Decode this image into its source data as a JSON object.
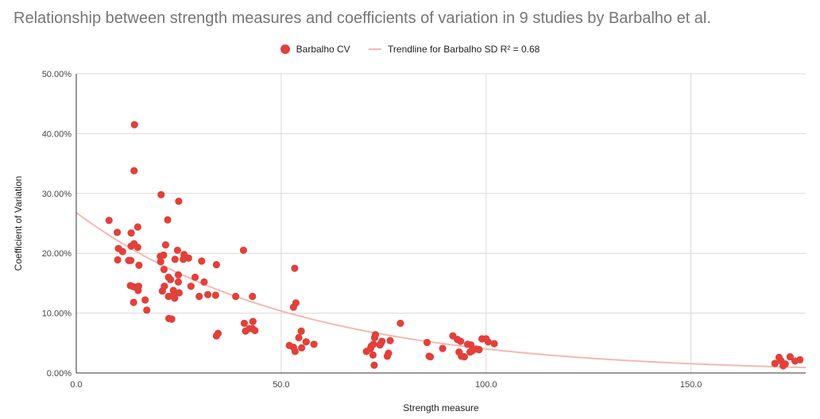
{
  "chart_data": {
    "type": "scatter",
    "title": "Relationship between strength measures and coefficients of variation in 9 studies by Barbalho et al.",
    "xlabel": "Strength measure",
    "ylabel": "Coefficient of Variation",
    "xlim": [
      0,
      178
    ],
    "ylim": [
      0,
      0.5
    ],
    "x_ticks": [
      {
        "value": 0,
        "label": "0.0"
      },
      {
        "value": 50,
        "label": "50.0"
      },
      {
        "value": 100,
        "label": "100.0"
      },
      {
        "value": 150,
        "label": "150.0"
      }
    ],
    "y_ticks": [
      {
        "value": 0,
        "label": "0.00%"
      },
      {
        "value": 0.1,
        "label": "10.00%"
      },
      {
        "value": 0.2,
        "label": "20.00%"
      },
      {
        "value": 0.3,
        "label": "30.00%"
      },
      {
        "value": 0.4,
        "label": "40.00%"
      },
      {
        "value": 0.5,
        "label": "50.00%"
      }
    ],
    "grid": true,
    "legend_position": "top",
    "series": [
      {
        "name": "Barbalho CV",
        "color": "#e2403a",
        "points": [
          [
            14.2,
            0.415
          ],
          [
            14.1,
            0.338
          ],
          [
            20.7,
            0.298
          ],
          [
            25.0,
            0.287
          ],
          [
            22.3,
            0.256
          ],
          [
            8.0,
            0.255
          ],
          [
            10.0,
            0.235
          ],
          [
            13.4,
            0.234
          ],
          [
            15.0,
            0.244
          ],
          [
            14.1,
            0.216
          ],
          [
            13.4,
            0.212
          ],
          [
            15.0,
            0.21
          ],
          [
            10.3,
            0.208
          ],
          [
            11.3,
            0.203
          ],
          [
            21.8,
            0.214
          ],
          [
            24.7,
            0.205
          ],
          [
            40.8,
            0.205
          ],
          [
            26.3,
            0.198
          ],
          [
            20.5,
            0.195
          ],
          [
            21.3,
            0.197
          ],
          [
            27.4,
            0.192
          ],
          [
            24.1,
            0.19
          ],
          [
            26.1,
            0.19
          ],
          [
            30.6,
            0.187
          ],
          [
            10.1,
            0.189
          ],
          [
            12.8,
            0.188
          ],
          [
            13.3,
            0.188
          ],
          [
            20.6,
            0.186
          ],
          [
            34.2,
            0.181
          ],
          [
            15.3,
            0.18
          ],
          [
            21.4,
            0.173
          ],
          [
            53.3,
            0.175
          ],
          [
            24.9,
            0.164
          ],
          [
            22.5,
            0.16
          ],
          [
            23.0,
            0.156
          ],
          [
            29.0,
            0.16
          ],
          [
            24.9,
            0.152
          ],
          [
            31.2,
            0.152
          ],
          [
            21.5,
            0.145
          ],
          [
            23.7,
            0.138
          ],
          [
            13.2,
            0.146
          ],
          [
            14.0,
            0.144
          ],
          [
            15.2,
            0.145
          ],
          [
            21.0,
            0.137
          ],
          [
            15.1,
            0.138
          ],
          [
            25.1,
            0.134
          ],
          [
            28.0,
            0.145
          ],
          [
            32.1,
            0.131
          ],
          [
            34.0,
            0.13
          ],
          [
            30.0,
            0.128
          ],
          [
            22.5,
            0.128
          ],
          [
            24.0,
            0.125
          ],
          [
            23.7,
            0.13
          ],
          [
            38.9,
            0.128
          ],
          [
            43.0,
            0.128
          ],
          [
            53.6,
            0.117
          ],
          [
            53.0,
            0.11
          ],
          [
            16.8,
            0.122
          ],
          [
            14.0,
            0.118
          ],
          [
            17.2,
            0.105
          ],
          [
            22.6,
            0.091
          ],
          [
            23.3,
            0.09
          ],
          [
            41.0,
            0.083
          ],
          [
            43.1,
            0.086
          ],
          [
            41.3,
            0.07
          ],
          [
            42.2,
            0.074
          ],
          [
            43.0,
            0.074
          ],
          [
            43.6,
            0.071
          ],
          [
            34.6,
            0.066
          ],
          [
            34.2,
            0.062
          ],
          [
            54.9,
            0.07
          ],
          [
            54.3,
            0.059
          ],
          [
            52.0,
            0.046
          ],
          [
            53.0,
            0.043
          ],
          [
            53.4,
            0.036
          ],
          [
            55.0,
            0.042
          ],
          [
            56.1,
            0.052
          ],
          [
            58.0,
            0.048
          ],
          [
            79.1,
            0.083
          ],
          [
            73.0,
            0.064
          ],
          [
            72.8,
            0.059
          ],
          [
            72.0,
            0.045
          ],
          [
            72.5,
            0.048
          ],
          [
            74.1,
            0.047
          ],
          [
            74.6,
            0.053
          ],
          [
            74.3,
            0.049
          ],
          [
            76.6,
            0.054
          ],
          [
            70.8,
            0.036
          ],
          [
            71.8,
            0.041
          ],
          [
            72.4,
            0.03
          ],
          [
            75.9,
            0.028
          ],
          [
            76.2,
            0.033
          ],
          [
            72.7,
            0.013
          ],
          [
            85.6,
            0.051
          ],
          [
            89.4,
            0.041
          ],
          [
            86.1,
            0.028
          ],
          [
            86.4,
            0.027
          ],
          [
            91.9,
            0.062
          ],
          [
            93.0,
            0.056
          ],
          [
            93.8,
            0.053
          ],
          [
            95.5,
            0.048
          ],
          [
            96.3,
            0.047
          ],
          [
            99.0,
            0.057
          ],
          [
            100.0,
            0.057
          ],
          [
            100.5,
            0.052
          ],
          [
            102.0,
            0.049
          ],
          [
            93.4,
            0.035
          ],
          [
            94.0,
            0.028
          ],
          [
            94.7,
            0.027
          ],
          [
            96.1,
            0.035
          ],
          [
            96.6,
            0.037
          ],
          [
            97.6,
            0.04
          ],
          [
            98.3,
            0.039
          ],
          [
            170.5,
            0.016
          ],
          [
            171.5,
            0.026
          ],
          [
            172.0,
            0.02
          ],
          [
            172.5,
            0.012
          ],
          [
            173.0,
            0.015
          ],
          [
            174.2,
            0.027
          ],
          [
            175.4,
            0.02
          ],
          [
            176.6,
            0.022
          ]
        ]
      },
      {
        "name": "Trendline for Barbalho SD R² = 0.68",
        "color": "#f4b8b2",
        "type": "trendline",
        "model": "exponential",
        "coefficients": {
          "a": 0.268,
          "b": -0.019
        },
        "x_range": [
          0,
          178
        ]
      }
    ]
  }
}
